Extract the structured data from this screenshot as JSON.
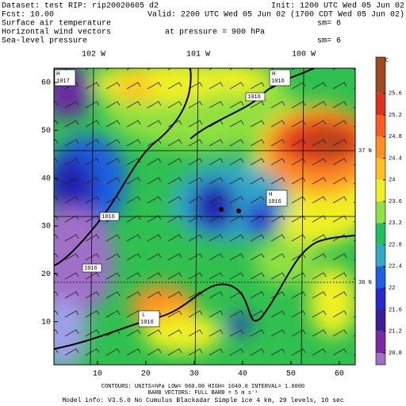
{
  "header": {
    "dataset": "Dataset: test  RIP: rip20020605 d2",
    "init": "Init: 1200 UTC Wed 05 Jun 02",
    "fcst": "Fcst:   10.00",
    "valid": "Valid: 2200 UTC Wed 05 Jun 02 (1700 CDT Wed 05 Jun 02)",
    "field1": "Surface air temperature",
    "field1_sm": "sm= 6",
    "field2": "Horizontal wind vectors",
    "field2_pressure": "at pressure =  900 hPa",
    "field3": "Sea-level pressure",
    "field3_sm": "sm= 6"
  },
  "map": {
    "xlim": [
      1,
      63.3
    ],
    "ylim": [
      1,
      63
    ],
    "xticks": [
      10,
      20,
      30,
      40,
      50,
      60
    ],
    "yticks": [
      10,
      20,
      30,
      40,
      50,
      60
    ],
    "longitudes": [
      "102 W",
      "101 W",
      "100 W"
    ],
    "latitudes": [
      "37 N",
      "36 N"
    ],
    "pressure_labels": [
      "H",
      "1017",
      "H",
      "1016",
      "1016",
      "H",
      "1016",
      "1016",
      "1016",
      "L",
      "1016"
    ]
  },
  "colorbar": {
    "unit": "°C",
    "range": [
      20.58,
      26.27
    ],
    "ticks": [
      25.6,
      25.2,
      24.8,
      24.4,
      24,
      23.6,
      23.2,
      22.8,
      22.4,
      22,
      21.6,
      21.2,
      20.8
    ],
    "colors": [
      "#a0481e",
      "#e0301e",
      "#ff5a20",
      "#ff9020",
      "#ffc020",
      "#f0f020",
      "#90e040",
      "#20c060",
      "#30a8c8",
      "#1f5fe0",
      "#2828d0",
      "#3a1e9a",
      "#7a2aa8",
      "#a070c8",
      "#9f9fe8"
    ]
  },
  "footer": {
    "contours": "CONTOURS:  UNITS=hPa  LOW=  960.00    HIGH=  1040.0    INTERVAL=   1.0000",
    "barbs": "BARB VECTORS:  FULL BARB = 5 m s⁻¹",
    "model": "Model info: V3.5.0  No Cumulus  Blackadar  Simple ice    4 km,   29 levels,    10 sec"
  }
}
